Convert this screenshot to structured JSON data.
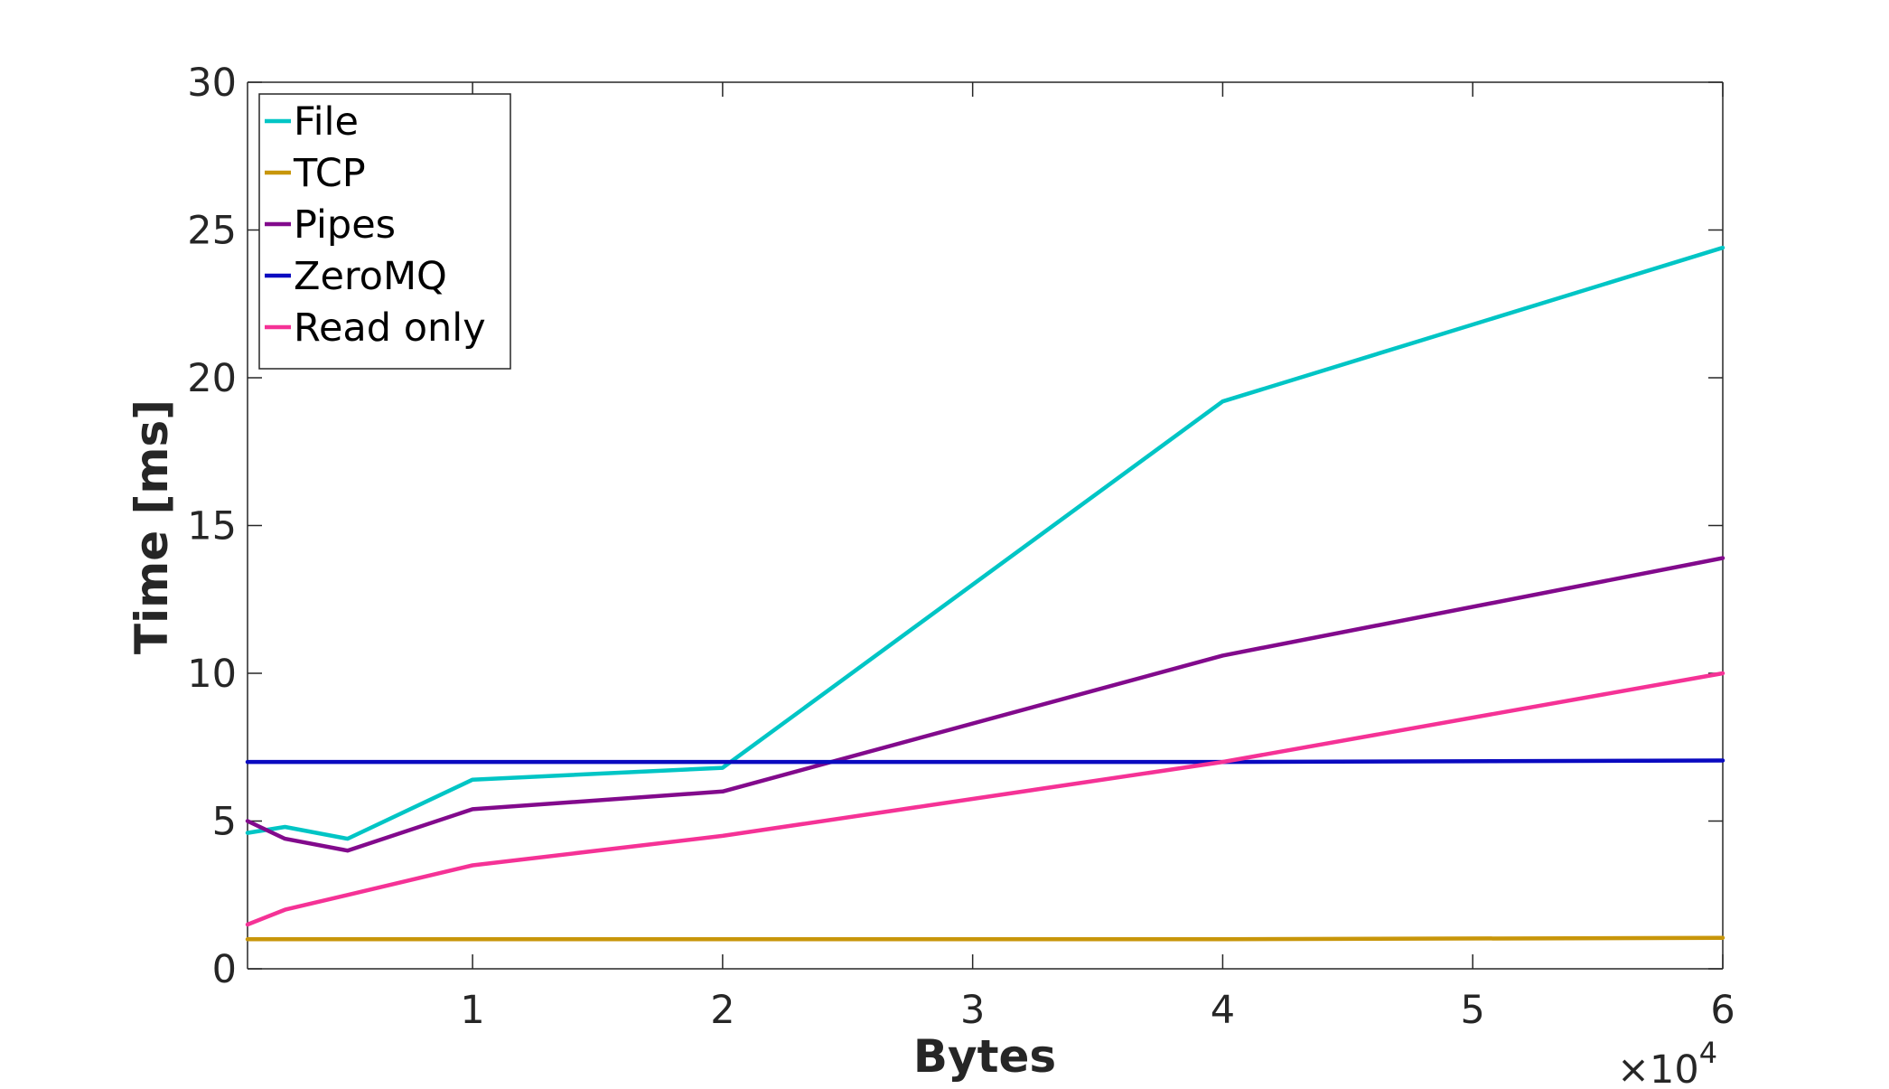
{
  "chart_data": {
    "type": "line",
    "xlabel": "Bytes",
    "ylabel": "Time [ms]",
    "x_multiplier_label": "×10",
    "x_multiplier_exponent": "4",
    "xlim": [
      1000,
      60000
    ],
    "ylim": [
      0,
      30
    ],
    "xticks": [
      10000,
      20000,
      30000,
      40000,
      50000,
      60000
    ],
    "xtick_labels": [
      "1",
      "2",
      "3",
      "4",
      "5",
      "6"
    ],
    "yticks": [
      0,
      5,
      10,
      15,
      20,
      25,
      30
    ],
    "ytick_labels": [
      "0",
      "5",
      "10",
      "15",
      "20",
      "25",
      "30"
    ],
    "grid": false,
    "legend_position": "top-left",
    "series": [
      {
        "name": "File",
        "color": "#00c5c5",
        "x": [
          1000,
          2500,
          5000,
          10000,
          20000,
          40000,
          60000
        ],
        "y": [
          4.6,
          4.8,
          4.4,
          6.4,
          6.8,
          19.2,
          24.4
        ]
      },
      {
        "name": "TCP",
        "color": "#c8960a",
        "x": [
          1000,
          2500,
          5000,
          10000,
          20000,
          40000,
          60000
        ],
        "y": [
          1.0,
          1.0,
          1.0,
          1.0,
          1.0,
          1.0,
          1.05
        ]
      },
      {
        "name": "Pipes",
        "color": "#820a8c",
        "x": [
          1000,
          2500,
          5000,
          10000,
          20000,
          40000,
          60000
        ],
        "y": [
          5.0,
          4.4,
          4.0,
          5.4,
          6.0,
          10.6,
          13.9
        ]
      },
      {
        "name": "ZeroMQ",
        "color": "#0a0ac0",
        "x": [
          1000,
          2500,
          5000,
          10000,
          20000,
          40000,
          60000
        ],
        "y": [
          7.0,
          7.0,
          7.0,
          7.0,
          7.0,
          7.0,
          7.05
        ]
      },
      {
        "name": "Read only",
        "color": "#f53296",
        "x": [
          1000,
          2500,
          5000,
          10000,
          20000,
          40000,
          60000
        ],
        "y": [
          1.5,
          2.0,
          2.5,
          3.5,
          4.5,
          7.0,
          10.0
        ]
      }
    ]
  }
}
